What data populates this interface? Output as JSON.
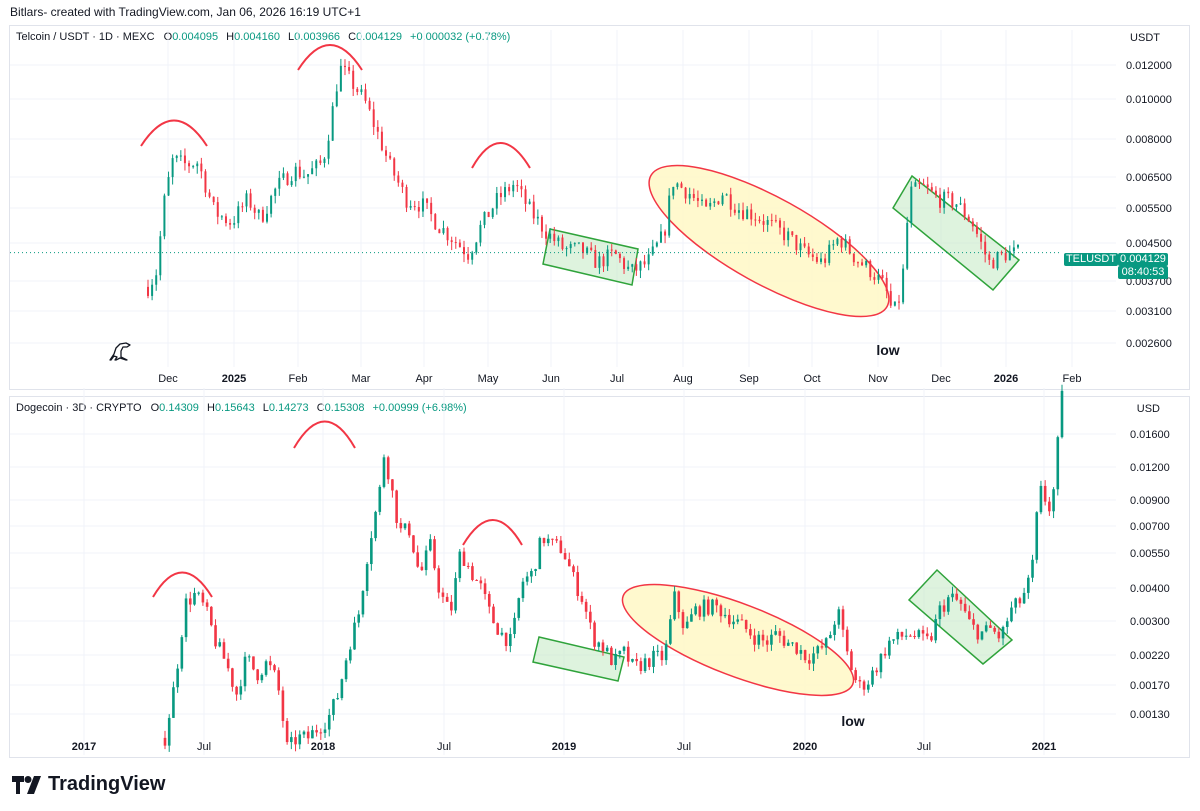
{
  "credit": "Bitlars- created with TradingView.com, Jan 06, 2026 16:19 UTC+1",
  "brand": "TradingView",
  "colors": {
    "up": "#089981",
    "down": "#f23645",
    "ellipse_fill": "#fff8c5",
    "ellipse_stroke": "#f23645",
    "box_fill": "#c8ebc8",
    "box_stroke": "#2fa33b",
    "grid": "#f0f3fa"
  },
  "chart_data": [
    {
      "type": "candlestick",
      "title": "Telcoin / USDT · 1D · MEXC",
      "ohlc": {
        "open_label": "O",
        "open": "0.004095",
        "high_label": "H",
        "high": "0.004160",
        "low_label": "L",
        "low": "0.003966",
        "close_label": "C",
        "close": "0.004129",
        "change": "+0.000032 (+0.78%)"
      },
      "currency": "USDT",
      "scale": "log",
      "ylim": [
        0.00235,
        0.0138
      ],
      "y_ticks": [
        "0.012000",
        "0.010000",
        "0.008000",
        "0.006500",
        "0.005500",
        "0.004500",
        "0.003700",
        "0.003100",
        "0.002600"
      ],
      "x_ticks": [
        "Dec",
        "2025",
        "Feb",
        "Mar",
        "Apr",
        "May",
        "Jun",
        "Jul",
        "Aug",
        "Sep",
        "Oct",
        "Nov",
        "Dec",
        "2026",
        "Feb"
      ],
      "last_price": {
        "symbol": "TELUSDT",
        "price": "0.004129",
        "countdown": "08:40:53",
        "value": 0.004129
      },
      "anchors": [
        {
          "t": 0,
          "v": 0.0034
        },
        {
          "t": 2,
          "v": 0.0037
        },
        {
          "t": 4,
          "v": 0.0056
        },
        {
          "t": 6,
          "v": 0.007
        },
        {
          "t": 9,
          "v": 0.0068
        },
        {
          "t": 12,
          "v": 0.0069
        },
        {
          "t": 16,
          "v": 0.0052
        },
        {
          "t": 20,
          "v": 0.0049
        },
        {
          "t": 24,
          "v": 0.0056
        },
        {
          "t": 27,
          "v": 0.005
        },
        {
          "t": 31,
          "v": 0.006
        },
        {
          "t": 35,
          "v": 0.0066
        },
        {
          "t": 38,
          "v": 0.0064
        },
        {
          "t": 42,
          "v": 0.0069
        },
        {
          "t": 44,
          "v": 0.0088
        },
        {
          "t": 46,
          "v": 0.0118
        },
        {
          "t": 48,
          "v": 0.0112
        },
        {
          "t": 52,
          "v": 0.0098
        },
        {
          "t": 55,
          "v": 0.0082
        },
        {
          "t": 58,
          "v": 0.0068
        },
        {
          "t": 62,
          "v": 0.0056
        },
        {
          "t": 66,
          "v": 0.0054
        },
        {
          "t": 70,
          "v": 0.0048
        },
        {
          "t": 74,
          "v": 0.0044
        },
        {
          "t": 77,
          "v": 0.0041
        },
        {
          "t": 80,
          "v": 0.0048
        },
        {
          "t": 84,
          "v": 0.0056
        },
        {
          "t": 88,
          "v": 0.0061
        },
        {
          "t": 92,
          "v": 0.0052
        },
        {
          "t": 96,
          "v": 0.0046
        },
        {
          "t": 100,
          "v": 0.0042
        },
        {
          "t": 104,
          "v": 0.0042
        },
        {
          "t": 108,
          "v": 0.0039
        },
        {
          "t": 112,
          "v": 0.0041
        },
        {
          "t": 116,
          "v": 0.0037
        },
        {
          "t": 120,
          "v": 0.0039
        },
        {
          "t": 124,
          "v": 0.0046
        },
        {
          "t": 126,
          "v": 0.0062
        },
        {
          "t": 130,
          "v": 0.0058
        },
        {
          "t": 134,
          "v": 0.0052
        },
        {
          "t": 138,
          "v": 0.0058
        },
        {
          "t": 142,
          "v": 0.0053
        },
        {
          "t": 146,
          "v": 0.0051
        },
        {
          "t": 150,
          "v": 0.0048
        },
        {
          "t": 154,
          "v": 0.0045
        },
        {
          "t": 158,
          "v": 0.0041
        },
        {
          "t": 162,
          "v": 0.0039
        },
        {
          "t": 166,
          "v": 0.0045
        },
        {
          "t": 170,
          "v": 0.004
        },
        {
          "t": 174,
          "v": 0.0037
        },
        {
          "t": 177,
          "v": 0.0034
        },
        {
          "t": 179,
          "v": 0.0029
        },
        {
          "t": 181,
          "v": 0.0033
        },
        {
          "t": 183,
          "v": 0.0058
        },
        {
          "t": 186,
          "v": 0.006
        },
        {
          "t": 190,
          "v": 0.0056
        },
        {
          "t": 194,
          "v": 0.0055
        },
        {
          "t": 198,
          "v": 0.0049
        },
        {
          "t": 202,
          "v": 0.0039
        },
        {
          "t": 206,
          "v": 0.0041
        },
        {
          "t": 209,
          "v": 0.004129
        }
      ],
      "annotations": [
        {
          "text": "low"
        }
      ]
    },
    {
      "type": "candlestick",
      "title": "Dogecoin · 3D · CRYPTO",
      "ohlc": {
        "open_label": "O",
        "open": "0.14309",
        "high_label": "H",
        "high": "0.15643",
        "low_label": "L",
        "low": "0.14273",
        "close_label": "C",
        "close": "0.15308",
        "change": "+0.00999 (+6.98%)"
      },
      "currency": "USD",
      "scale": "log",
      "ylim": [
        0.00108,
        0.0205
      ],
      "y_ticks": [
        "0.01600",
        "0.01200",
        "0.00900",
        "0.00700",
        "0.00550",
        "0.00400",
        "0.00300",
        "0.00220",
        "0.00170",
        "0.00130"
      ],
      "x_ticks": [
        "2017",
        "Jul",
        "2018",
        "Jul",
        "2019",
        "Jul",
        "2020",
        "Jul",
        "2021"
      ],
      "anchors": [
        {
          "t": 0,
          "v": 0.0011
        },
        {
          "t": 2,
          "v": 0.0018
        },
        {
          "t": 4,
          "v": 0.0035
        },
        {
          "t": 6,
          "v": 0.0038
        },
        {
          "t": 8,
          "v": 0.0033
        },
        {
          "t": 10,
          "v": 0.0025
        },
        {
          "t": 12,
          "v": 0.0021
        },
        {
          "t": 14,
          "v": 0.0016
        },
        {
          "t": 16,
          "v": 0.0022
        },
        {
          "t": 18,
          "v": 0.0019
        },
        {
          "t": 20,
          "v": 0.0021
        },
        {
          "t": 22,
          "v": 0.0018
        },
        {
          "t": 24,
          "v": 0.001
        },
        {
          "t": 26,
          "v": 0.0011
        },
        {
          "t": 28,
          "v": 0.0011
        },
        {
          "t": 30,
          "v": 0.0012
        },
        {
          "t": 32,
          "v": 0.0013
        },
        {
          "t": 34,
          "v": 0.0016
        },
        {
          "t": 36,
          "v": 0.0024
        },
        {
          "t": 38,
          "v": 0.0032
        },
        {
          "t": 40,
          "v": 0.0058
        },
        {
          "t": 42,
          "v": 0.0088
        },
        {
          "t": 43,
          "v": 0.0128
        },
        {
          "t": 44,
          "v": 0.0105
        },
        {
          "t": 46,
          "v": 0.0065
        },
        {
          "t": 48,
          "v": 0.0066
        },
        {
          "t": 50,
          "v": 0.0044
        },
        {
          "t": 52,
          "v": 0.0058
        },
        {
          "t": 54,
          "v": 0.0038
        },
        {
          "t": 56,
          "v": 0.0032
        },
        {
          "t": 58,
          "v": 0.0055
        },
        {
          "t": 60,
          "v": 0.0046
        },
        {
          "t": 62,
          "v": 0.004
        },
        {
          "t": 64,
          "v": 0.0031
        },
        {
          "t": 66,
          "v": 0.0027
        },
        {
          "t": 68,
          "v": 0.0025
        },
        {
          "t": 70,
          "v": 0.0042
        },
        {
          "t": 72,
          "v": 0.0045
        },
        {
          "t": 74,
          "v": 0.0062
        },
        {
          "t": 76,
          "v": 0.0058
        },
        {
          "t": 78,
          "v": 0.0056
        },
        {
          "t": 80,
          "v": 0.0044
        },
        {
          "t": 82,
          "v": 0.0036
        },
        {
          "t": 84,
          "v": 0.0026
        },
        {
          "t": 86,
          "v": 0.0024
        },
        {
          "t": 88,
          "v": 0.0021
        },
        {
          "t": 90,
          "v": 0.0023
        },
        {
          "t": 92,
          "v": 0.002
        },
        {
          "t": 94,
          "v": 0.0021
        },
        {
          "t": 96,
          "v": 0.0022
        },
        {
          "t": 98,
          "v": 0.0022
        },
        {
          "t": 100,
          "v": 0.0037
        },
        {
          "t": 102,
          "v": 0.0028
        },
        {
          "t": 104,
          "v": 0.0033
        },
        {
          "t": 106,
          "v": 0.0034
        },
        {
          "t": 108,
          "v": 0.0034
        },
        {
          "t": 110,
          "v": 0.0032
        },
        {
          "t": 112,
          "v": 0.003
        },
        {
          "t": 114,
          "v": 0.0028
        },
        {
          "t": 116,
          "v": 0.0026
        },
        {
          "t": 118,
          "v": 0.0025
        },
        {
          "t": 120,
          "v": 0.0027
        },
        {
          "t": 122,
          "v": 0.0025
        },
        {
          "t": 124,
          "v": 0.0024
        },
        {
          "t": 126,
          "v": 0.0022
        },
        {
          "t": 128,
          "v": 0.0023
        },
        {
          "t": 130,
          "v": 0.0025
        },
        {
          "t": 132,
          "v": 0.0033
        },
        {
          "t": 134,
          "v": 0.0022
        },
        {
          "t": 136,
          "v": 0.0017
        },
        {
          "t": 138,
          "v": 0.0018
        },
        {
          "t": 140,
          "v": 0.0021
        },
        {
          "t": 142,
          "v": 0.0025
        },
        {
          "t": 144,
          "v": 0.0026
        },
        {
          "t": 146,
          "v": 0.0027
        },
        {
          "t": 148,
          "v": 0.0026
        },
        {
          "t": 150,
          "v": 0.0025
        },
        {
          "t": 152,
          "v": 0.0033
        },
        {
          "t": 154,
          "v": 0.0037
        },
        {
          "t": 156,
          "v": 0.0035
        },
        {
          "t": 158,
          "v": 0.0029
        },
        {
          "t": 160,
          "v": 0.0027
        },
        {
          "t": 162,
          "v": 0.0028
        },
        {
          "t": 164,
          "v": 0.0026
        },
        {
          "t": 166,
          "v": 0.0033
        },
        {
          "t": 168,
          "v": 0.0036
        },
        {
          "t": 170,
          "v": 0.0044
        },
        {
          "t": 171,
          "v": 0.0072
        },
        {
          "t": 172,
          "v": 0.0095
        },
        {
          "t": 173,
          "v": 0.0082
        },
        {
          "t": 174,
          "v": 0.0078
        },
        {
          "t": 176,
          "v": 0.0205
        }
      ],
      "annotations": [
        {
          "text": "low"
        }
      ]
    }
  ]
}
